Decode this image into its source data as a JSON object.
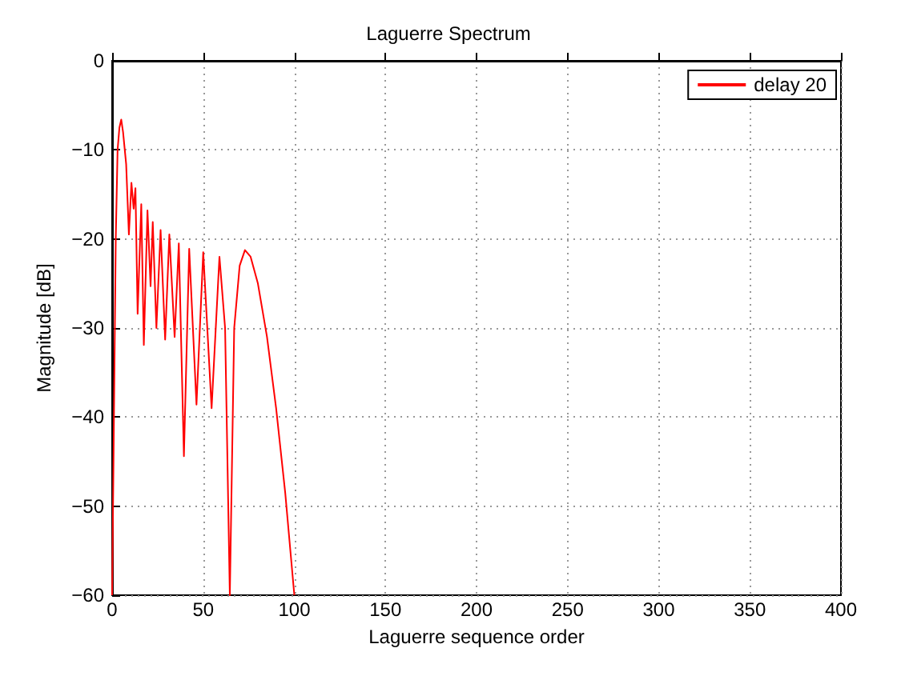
{
  "chart_data": {
    "type": "line",
    "title": "Laguerre Spectrum",
    "xlabel": "Laguerre sequence order",
    "ylabel": "Magnitude [dB]",
    "xlim": [
      0,
      400
    ],
    "ylim": [
      -60,
      0
    ],
    "xticks": [
      0,
      50,
      100,
      150,
      200,
      250,
      300,
      350,
      400
    ],
    "yticks": [
      -60,
      -50,
      -40,
      -30,
      -20,
      -10,
      0
    ],
    "grid": true,
    "legend": "top right",
    "marker": "none",
    "line_style": "solid",
    "series": [
      {
        "name": "delay 20",
        "color": "#ff0000",
        "x": [
          0,
          1,
          2,
          3,
          4,
          5,
          6,
          7.7,
          9.2,
          10.6,
          11.8,
          12.8,
          14,
          16,
          17.4,
          19.4,
          21.1,
          22.3,
          24.3,
          26.6,
          29.1,
          31.4,
          34.3,
          36.6,
          39.4,
          42.3,
          46.3,
          50,
          54.6,
          58.9,
          62,
          64.6,
          67,
          70,
          72.9,
          76,
          80,
          85,
          90,
          95,
          100
        ],
        "values": [
          -60,
          -40,
          -20,
          -10,
          -7.5,
          -6.6,
          -8,
          -11.6,
          -19.5,
          -13.7,
          -16.6,
          -14.3,
          -28.4,
          -16.1,
          -31.9,
          -16.8,
          -25.3,
          -18.1,
          -30,
          -19,
          -31.3,
          -19.5,
          -31,
          -20.5,
          -44.4,
          -21.1,
          -38.6,
          -21.5,
          -39,
          -22,
          -30,
          -60,
          -30,
          -23,
          -21.25,
          -22,
          -25,
          -31,
          -39,
          -48.5,
          -60
        ]
      }
    ]
  }
}
